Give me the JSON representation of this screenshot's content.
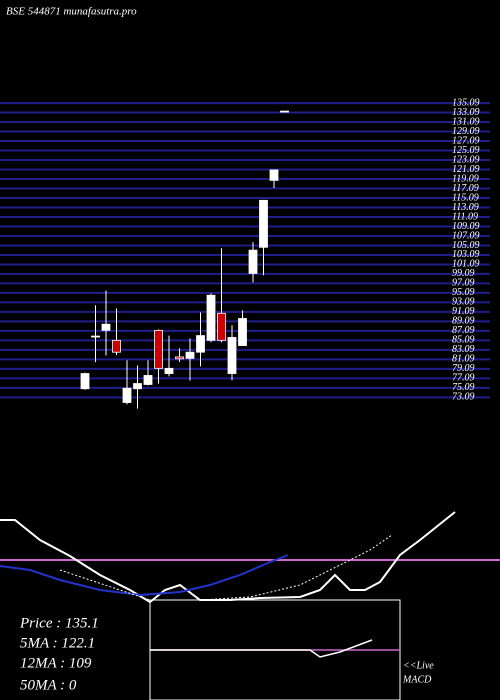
{
  "chart_data": {
    "type": "candlestick",
    "title": "BSE 544871 munafasutra.pro",
    "up_color": "#ffffff",
    "down_color": "#cc0000",
    "grid": true,
    "grid_color": "#1e1e8c",
    "ylim": [
      70,
      137
    ],
    "yticks": [
      73.09,
      75.09,
      77.09,
      79.09,
      81.09,
      83.09,
      85.09,
      87.09,
      89.09,
      91.09,
      93.09,
      95.09,
      97.09,
      99.09,
      101.09,
      103.09,
      105.09,
      107.09,
      109.09,
      111.09,
      113.09,
      115.09,
      117.09,
      119.09,
      121.09,
      123.09,
      125.09,
      127.09,
      129.09,
      131.09,
      133.09,
      135.09
    ],
    "open": [
      74.9,
      86,
      87.2,
      85.1,
      72.0,
      74.9,
      75.8,
      87.2,
      78.1,
      81.6,
      81.3,
      82.6,
      85.1,
      90.8,
      78.1,
      84.0,
      99.2,
      104.7,
      118.8,
      133.4
    ],
    "high": [
      78.3,
      92.5,
      95.6,
      91.8,
      80.9,
      79.8,
      80.9,
      87.4,
      86.1,
      83.4,
      85.5,
      91.0,
      95.0,
      104.5,
      88.3,
      91.4,
      105.8,
      114.6,
      121.0,
      133.4
    ],
    "low": [
      74.7,
      80.5,
      81.9,
      82.0,
      71.6,
      70.7,
      75.6,
      76.0,
      77.5,
      80.5,
      76.6,
      79.6,
      84.7,
      84.7,
      76.7,
      84.0,
      97.3,
      98.8,
      117.2,
      133.4
    ],
    "close": [
      78.1,
      86,
      88.5,
      82.6,
      75.0,
      76.0,
      77.7,
      79.2,
      79.2,
      81.2,
      82.6,
      86.1,
      94.6,
      85.1,
      85.7,
      89.7,
      104.1,
      114.6,
      121.0,
      133.4
    ]
  },
  "info": {
    "lines": [
      "Price   : 135.1",
      "5MA : 122.1",
      "12MA : 109",
      "50MA : 0"
    ],
    "macd_label_1": "<<Live",
    "macd_label_2": "MACD"
  }
}
